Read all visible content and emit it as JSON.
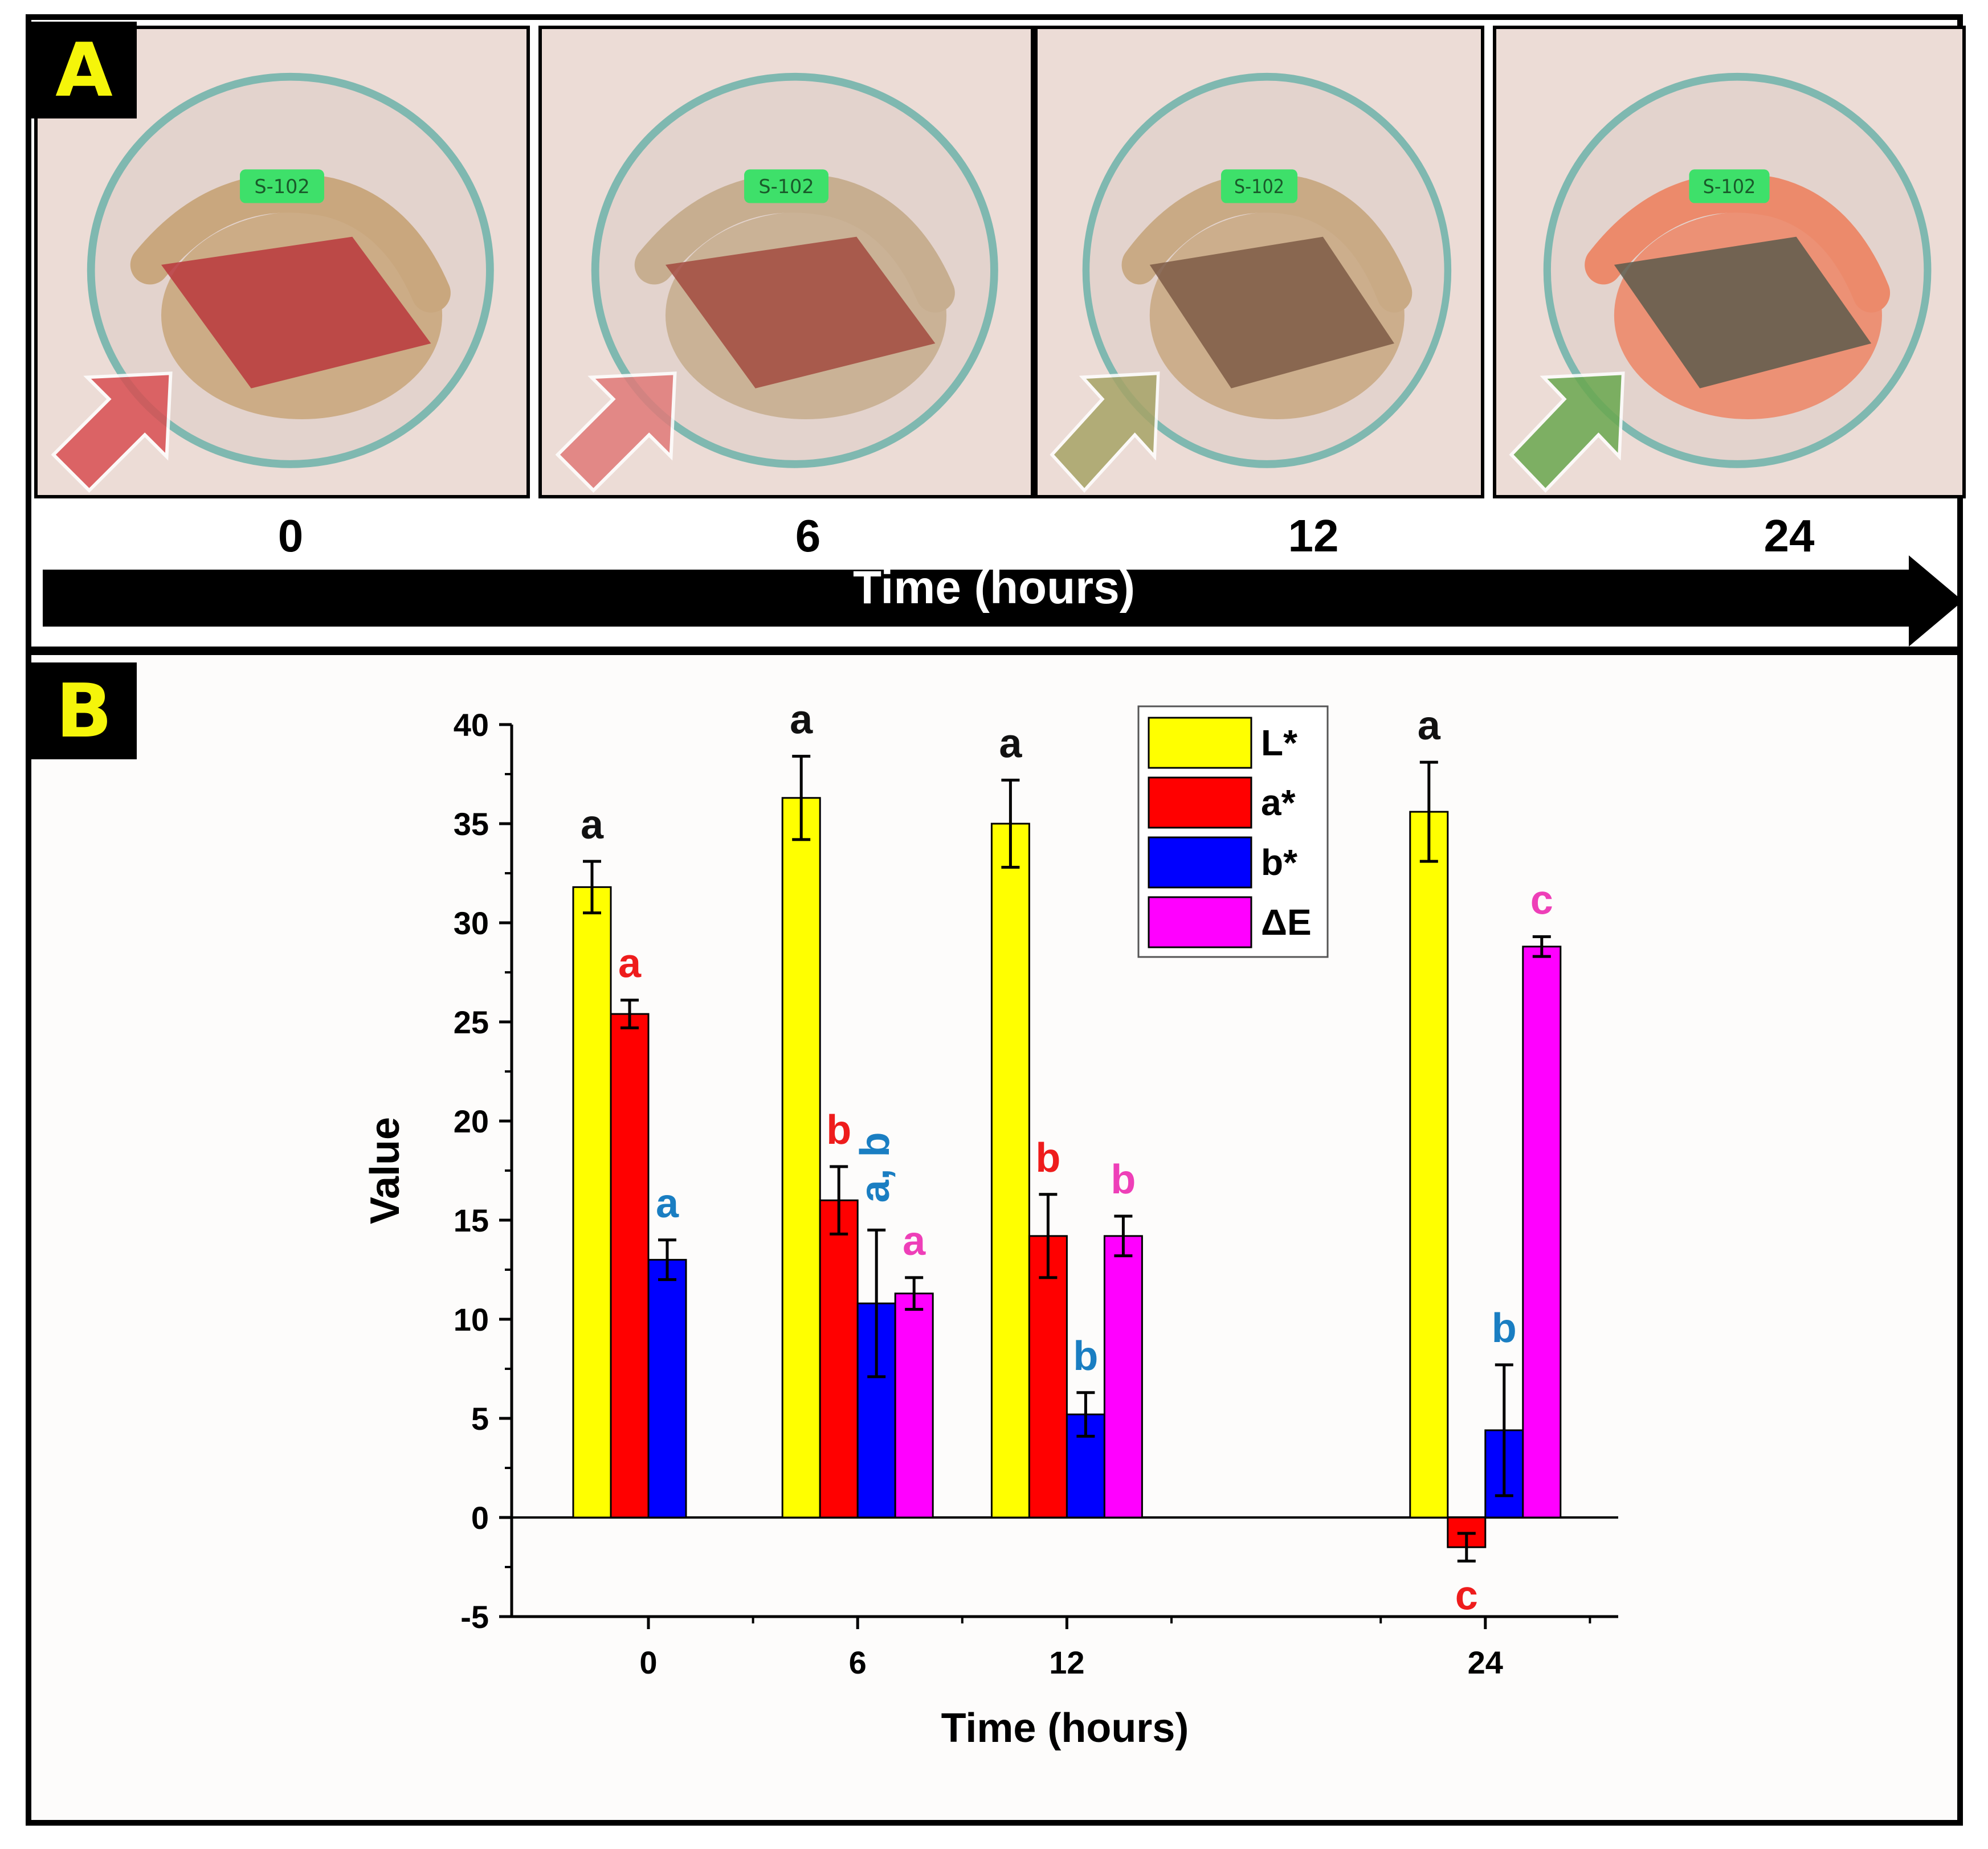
{
  "panel_a": {
    "label": "A",
    "photos": [
      {
        "time": "0",
        "dish_tag": "S-102",
        "arrow_color": "#d94f52",
        "shrimp_color": "#c9a77e",
        "film_color": "#b8373c"
      },
      {
        "time": "6",
        "dish_tag": "S-102",
        "arrow_color": "#e17a79",
        "shrimp_color": "#c7ae90",
        "film_color": "#a24a40"
      },
      {
        "time": "12",
        "dish_tag": "S-102",
        "arrow_color": "#a7a467",
        "shrimp_color": "#c9aa85",
        "film_color": "#7d5b45"
      },
      {
        "time": "24",
        "dish_tag": "S-102",
        "arrow_color": "#6aa84f",
        "shrimp_color": "#ec8a6b",
        "film_color": "#5d5a4c"
      }
    ],
    "timeline_title": "Time (hours)"
  },
  "panel_b": {
    "label": "B"
  },
  "chart_data": {
    "type": "bar",
    "xlabel": "Time (hours)",
    "ylabel": "Value",
    "ylim": [
      -5,
      40
    ],
    "yticks": [
      "-5",
      "0",
      "5",
      "10",
      "15",
      "20",
      "25",
      "30",
      "35",
      "40"
    ],
    "categories": [
      "0",
      "6",
      "12",
      "24"
    ],
    "category_values": [
      0,
      6,
      12,
      24
    ],
    "series": [
      {
        "name": "L*",
        "color": "#ffff00",
        "letter_color": "#111111",
        "values": [
          31.8,
          36.3,
          35.0,
          35.6
        ],
        "errors": [
          1.3,
          2.1,
          2.2,
          2.5
        ],
        "letters": [
          "a",
          "a",
          "a",
          "a"
        ]
      },
      {
        "name": "a*",
        "color": "#ff0000",
        "letter_color": "#ee1c1c",
        "values": [
          25.4,
          16.0,
          14.2,
          -1.5
        ],
        "errors": [
          0.7,
          1.7,
          2.1,
          0.7
        ],
        "letters": [
          "a",
          "b",
          "b",
          "c"
        ]
      },
      {
        "name": "b*",
        "color": "#0000ff",
        "letter_color": "#1a7ec2",
        "values": [
          13.0,
          10.8,
          5.2,
          4.4
        ],
        "errors": [
          1.0,
          3.7,
          1.1,
          3.3
        ],
        "letters": [
          "a",
          "a, b",
          "b",
          "b"
        ]
      },
      {
        "name": "ΔE",
        "color": "#ff00ff",
        "letter_color": "#ee3fb8",
        "values": [
          null,
          11.3,
          14.2,
          28.8
        ],
        "errors": [
          null,
          0.8,
          1.0,
          0.5
        ],
        "letters": [
          null,
          "a",
          "b",
          "c"
        ]
      }
    ],
    "legend_position": "top-right",
    "grid": false
  }
}
